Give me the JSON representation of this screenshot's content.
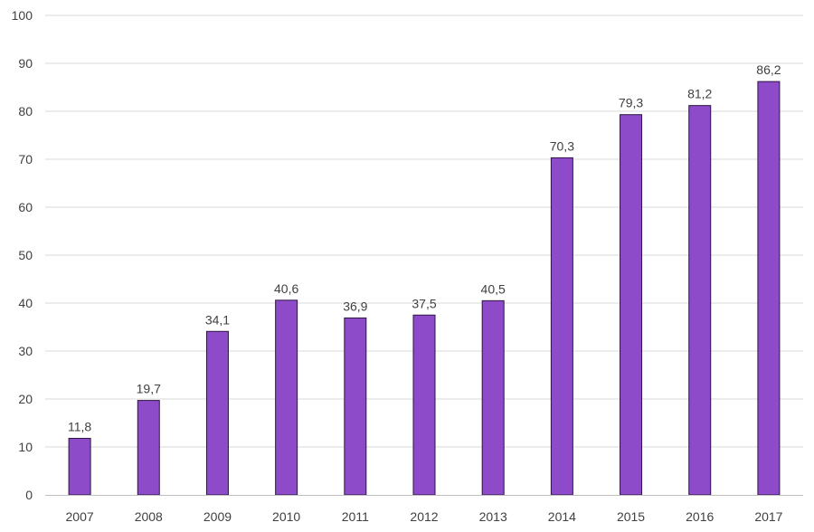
{
  "chart_data": {
    "type": "bar",
    "categories": [
      "2007",
      "2008",
      "2009",
      "2010",
      "2011",
      "2012",
      "2013",
      "2014",
      "2015",
      "2016",
      "2017"
    ],
    "values": [
      11.8,
      19.7,
      34.1,
      40.6,
      36.9,
      37.5,
      40.5,
      70.3,
      79.3,
      81.2,
      86.2
    ],
    "value_labels": [
      "11,8",
      "19,7",
      "34,1",
      "40,6",
      "36,9",
      "37,5",
      "40,5",
      "70,3",
      "79,3",
      "81,2",
      "86,2"
    ],
    "y_ticks": [
      "0",
      "10",
      "20",
      "30",
      "40",
      "50",
      "60",
      "70",
      "80",
      "90",
      "100"
    ],
    "title": "",
    "xlabel": "",
    "ylabel": "",
    "ylim": [
      0,
      100
    ],
    "grid": true,
    "legend": "none",
    "colors": {
      "bar_fill": "#8e4bc9",
      "bar_stroke": "#2b1640",
      "grid": "#d9d9d9",
      "axis": "#bfbfbf",
      "text": "#404040"
    }
  }
}
